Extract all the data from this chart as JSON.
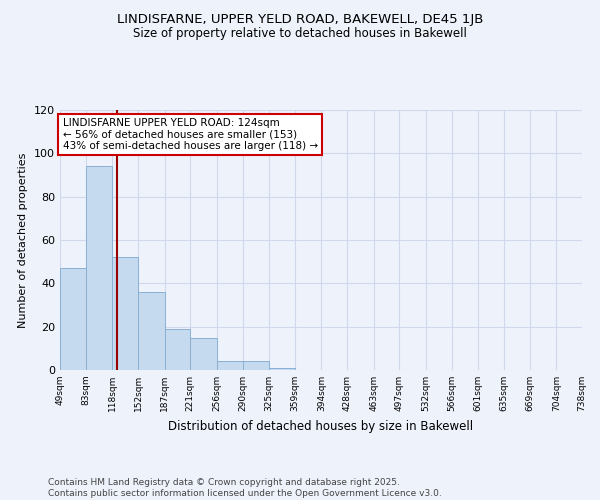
{
  "title": "LINDISFARNE, UPPER YELD ROAD, BAKEWELL, DE45 1JB",
  "subtitle": "Size of property relative to detached houses in Bakewell",
  "xlabel": "Distribution of detached houses by size in Bakewell",
  "ylabel": "Number of detached properties",
  "footer_line1": "Contains HM Land Registry data © Crown copyright and database right 2025.",
  "footer_line2": "Contains public sector information licensed under the Open Government Licence v3.0.",
  "annotation_line1": "LINDISFARNE UPPER YELD ROAD: 124sqm",
  "annotation_line2": "← 56% of detached houses are smaller (153)",
  "annotation_line3": "43% of semi-detached houses are larger (118) →",
  "property_size": 124,
  "bar_edges": [
    49,
    83,
    118,
    152,
    187,
    221,
    256,
    290,
    325,
    359,
    394,
    428,
    463,
    497,
    532,
    566,
    601,
    635,
    669,
    704,
    738
  ],
  "bar_heights": [
    47,
    94,
    52,
    36,
    19,
    15,
    4,
    4,
    1,
    0,
    0,
    0,
    0,
    0,
    0,
    0,
    0,
    0,
    0,
    0
  ],
  "bar_color": "#c5d9ef",
  "bar_edge_color": "#8ab0d4",
  "vline_color": "#990000",
  "ylim": [
    0,
    120
  ],
  "annotation_box_facecolor": "#ffffff",
  "annotation_box_edgecolor": "#cc0000",
  "background_color": "#eef2fb",
  "grid_color": "#d0d8ee",
  "tick_labels": [
    "49sqm",
    "83sqm",
    "118sqm",
    "152sqm",
    "187sqm",
    "221sqm",
    "256sqm",
    "290sqm",
    "325sqm",
    "359sqm",
    "394sqm",
    "428sqm",
    "463sqm",
    "497sqm",
    "532sqm",
    "566sqm",
    "601sqm",
    "635sqm",
    "669sqm",
    "704sqm",
    "738sqm"
  ],
  "title_fontsize": 9.5,
  "subtitle_fontsize": 8.5,
  "ylabel_fontsize": 8,
  "xlabel_fontsize": 8.5,
  "tick_fontsize": 6.5,
  "footer_fontsize": 6.5,
  "annotation_fontsize": 7.5
}
